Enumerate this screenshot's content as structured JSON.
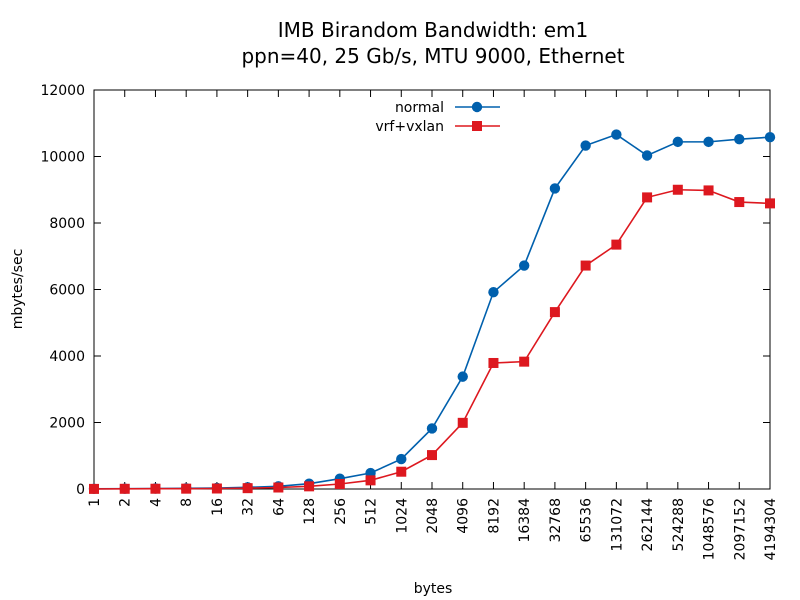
{
  "chart_data": {
    "type": "line",
    "title": "IMB Birandom Bandwidth: em1",
    "subtitle": "ppn=40, 25 Gb/s, MTU 9000, Ethernet",
    "xlabel": "bytes",
    "ylabel": "mbytes/sec",
    "categories": [
      "1",
      "2",
      "4",
      "8",
      "16",
      "32",
      "64",
      "128",
      "256",
      "512",
      "1024",
      "2048",
      "4096",
      "8192",
      "16384",
      "32768",
      "65536",
      "131072",
      "262144",
      "524288",
      "1048576",
      "2097152",
      "4194304"
    ],
    "ylim": [
      0,
      12000
    ],
    "yticks": [
      "0",
      "2000",
      "4000",
      "6000",
      "8000",
      "10000",
      "12000"
    ],
    "grid": false,
    "legend_position": "top-center",
    "series": [
      {
        "name": "normal",
        "color": "#0060ad",
        "marker": "circle",
        "values": [
          5,
          10,
          15,
          20,
          30,
          50,
          80,
          160,
          310,
          480,
          900,
          1820,
          3380,
          5920,
          6720,
          9040,
          10330,
          10660,
          10030,
          10440,
          10440,
          10520,
          10580
        ]
      },
      {
        "name": "vrf+vxlan",
        "color": "#dd181f",
        "marker": "square",
        "values": [
          3,
          6,
          8,
          10,
          15,
          25,
          45,
          80,
          150,
          260,
          520,
          1020,
          1990,
          3790,
          3830,
          5320,
          6720,
          7350,
          8770,
          9000,
          8980,
          8630,
          8590
        ]
      }
    ]
  }
}
